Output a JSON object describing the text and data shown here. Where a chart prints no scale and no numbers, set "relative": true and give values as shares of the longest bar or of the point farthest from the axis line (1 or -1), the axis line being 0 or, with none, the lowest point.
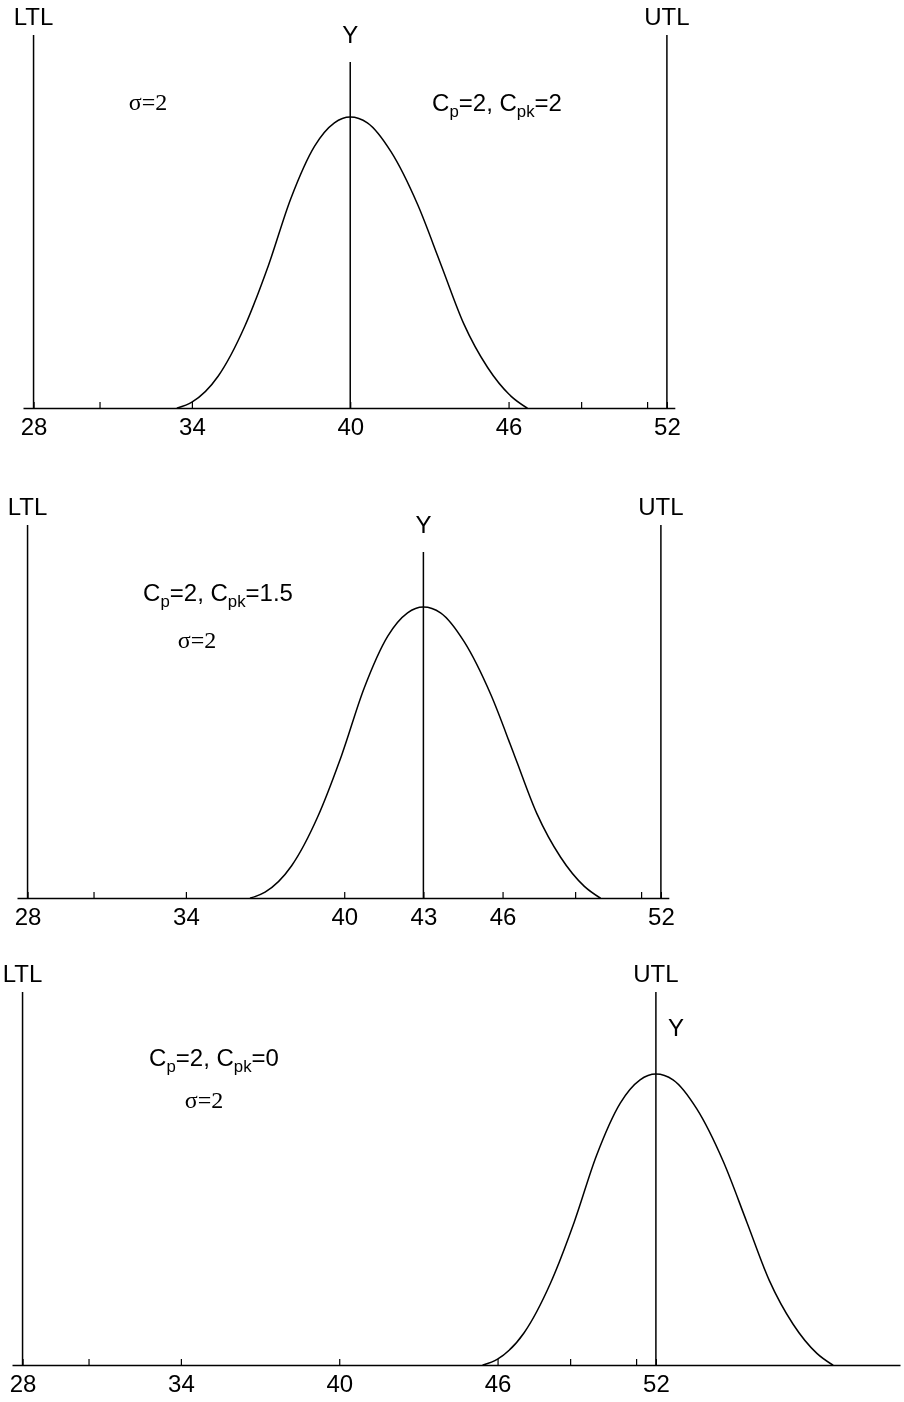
{
  "chart_data": [
    {
      "type": "line",
      "relative": true,
      "color": "#000000",
      "x": [
        33.45,
        34,
        35,
        36,
        36.9,
        37.75,
        38.65,
        39.4,
        40,
        40.65,
        41.55,
        42.55,
        43.45,
        44.3,
        45.2,
        46.1,
        46.7
      ],
      "values": [
        0,
        0.02,
        0.11,
        0.28,
        0.49,
        0.72,
        0.9,
        0.98,
        1,
        0.98,
        0.88,
        0.7,
        0.49,
        0.29,
        0.14,
        0.04,
        0
      ],
      "xlim": [
        27.6,
        52.3
      ],
      "xticks": [
        28,
        {
          "value": 30.5,
          "label": null
        },
        34,
        40,
        46,
        {
          "value": 48.75,
          "label": null
        },
        {
          "value": 51.25,
          "label": null
        },
        52
      ],
      "ref_lines": [
        {
          "axis": "x",
          "value": 28,
          "label": "LTL"
        },
        {
          "axis": "x",
          "value": 52,
          "label": "UTL"
        },
        {
          "axis": "x",
          "value": 40,
          "label": "Y"
        }
      ],
      "annotations": [
        "σ=2",
        "C$_{p}$=2, C$_{pk}$=2"
      ]
    },
    {
      "type": "line",
      "relative": true,
      "color": "#000000",
      "x": [
        36.45,
        37,
        38,
        39,
        39.9,
        40.75,
        41.65,
        42.4,
        43,
        43.65,
        44.55,
        45.55,
        46.45,
        47.3,
        48.2,
        49.1,
        49.7
      ],
      "values": [
        0,
        0.02,
        0.11,
        0.28,
        0.49,
        0.72,
        0.9,
        0.98,
        1,
        0.98,
        0.88,
        0.7,
        0.49,
        0.29,
        0.14,
        0.04,
        0
      ],
      "xlim": [
        27.6,
        52.3
      ],
      "xticks": [
        28,
        {
          "value": 30.5,
          "label": null
        },
        34,
        40,
        43,
        46,
        {
          "value": 48.75,
          "label": null
        },
        {
          "value": 51.25,
          "label": null
        },
        52
      ],
      "ref_lines": [
        {
          "axis": "x",
          "value": 28,
          "label": "LTL"
        },
        {
          "axis": "x",
          "value": 52,
          "label": "UTL"
        },
        {
          "axis": "x",
          "value": 43,
          "label": "Y"
        }
      ],
      "annotations": [
        "C$_{p}$=2, C$_{pk}$=1.5",
        "σ=2"
      ]
    },
    {
      "type": "line",
      "relative": true,
      "color": "#000000",
      "x": [
        45.45,
        46,
        47,
        48,
        48.9,
        49.75,
        50.65,
        51.4,
        52,
        52.65,
        53.55,
        54.55,
        55.45,
        56.3,
        57.2,
        58.1,
        58.7
      ],
      "values": [
        0,
        0.02,
        0.11,
        0.28,
        0.49,
        0.72,
        0.9,
        0.98,
        1,
        0.98,
        0.88,
        0.7,
        0.49,
        0.29,
        0.14,
        0.04,
        0
      ],
      "xlim": [
        27.6,
        61.25
      ],
      "xticks": [
        28,
        {
          "value": 30.5,
          "label": null
        },
        34,
        40,
        46,
        {
          "value": 48.75,
          "label": null
        },
        {
          "value": 51.25,
          "label": null
        },
        52
      ],
      "ref_lines": [
        {
          "axis": "x",
          "value": 28,
          "label": "LTL"
        },
        {
          "axis": "x",
          "value": 52,
          "label": "UTL"
        }
      ],
      "annotations": [
        "C$_{p}$=2, C$_{pk}$=0",
        "σ=2",
        {
          "text": "Y",
          "x": 52
        }
      ]
    }
  ]
}
